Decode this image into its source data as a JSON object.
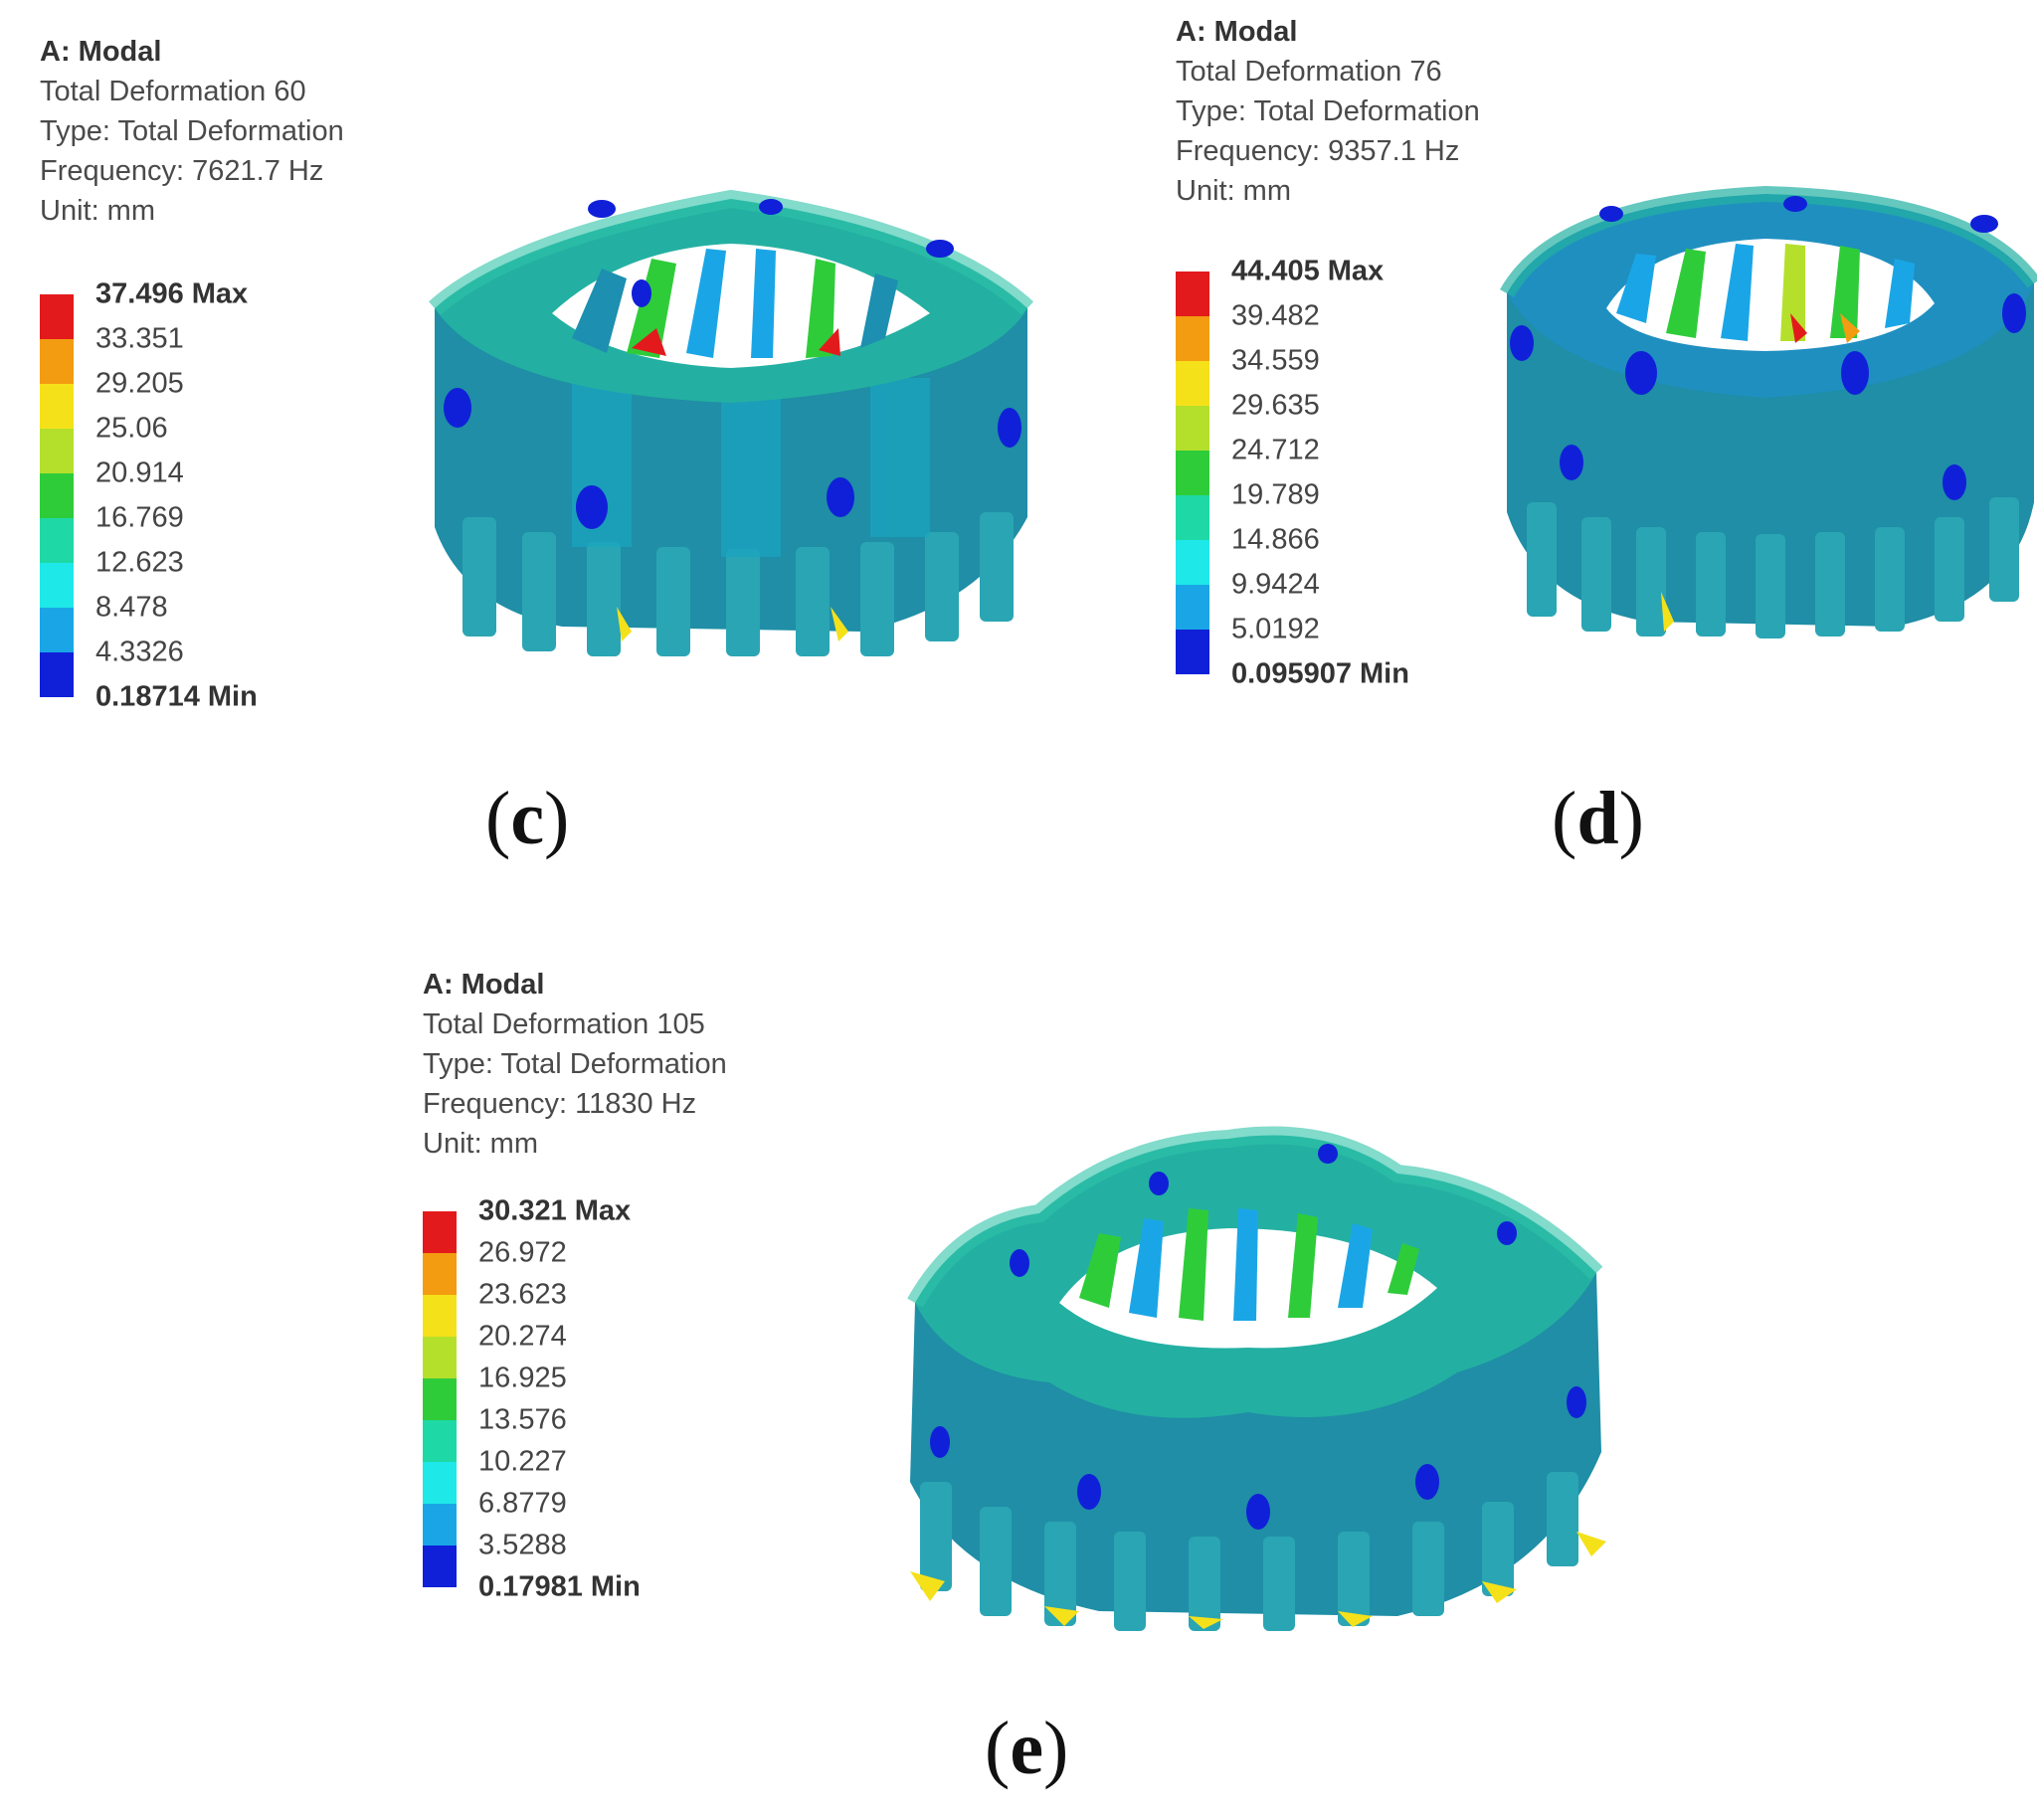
{
  "panels": [
    {
      "id": "c",
      "analysis": "A: Modal",
      "result": "Total Deformation 60",
      "type": "Type: Total Deformation",
      "frequency": "Frequency: 7621.7 Hz",
      "unit": "Unit: mm",
      "legend_max": "37.496 Max",
      "legend_mid": [
        "33.351",
        "29.205",
        "25.06",
        "20.914",
        "16.769",
        "12.623",
        "8.478",
        "4.3326"
      ],
      "legend_min": "0.18714 Min",
      "caption_open": "(",
      "caption_letter": "c",
      "caption_close": ")"
    },
    {
      "id": "d",
      "analysis": "A: Modal",
      "result": "Total Deformation 76",
      "type": "Type: Total Deformation",
      "frequency": "Frequency: 9357.1 Hz",
      "unit": "Unit: mm",
      "legend_max": "44.405 Max",
      "legend_mid": [
        "39.482",
        "34.559",
        "29.635",
        "24.712",
        "19.789",
        "14.866",
        "9.9424",
        "5.0192"
      ],
      "legend_min": "0.095907 Min",
      "caption_open": "(",
      "caption_letter": "d",
      "caption_close": ")"
    },
    {
      "id": "e",
      "analysis": "A: Modal",
      "result": "Total Deformation 105",
      "type": "Type: Total Deformation",
      "frequency": "Frequency: 11830 Hz",
      "unit": "Unit: mm",
      "legend_max": "30.321 Max",
      "legend_mid": [
        "26.972",
        "23.623",
        "20.274",
        "16.925",
        "13.576",
        "10.227",
        "6.8779",
        "3.5288"
      ],
      "legend_min": "0.17981 Min",
      "caption_open": "(",
      "caption_letter": "e",
      "caption_close": ")"
    }
  ],
  "colormap": [
    "#e31a1c",
    "#f39c12",
    "#f5e11a",
    "#b4e02c",
    "#2fcc3a",
    "#1ed9a5",
    "#1ee8e8",
    "#1aa6e6",
    "#1020d8"
  ]
}
